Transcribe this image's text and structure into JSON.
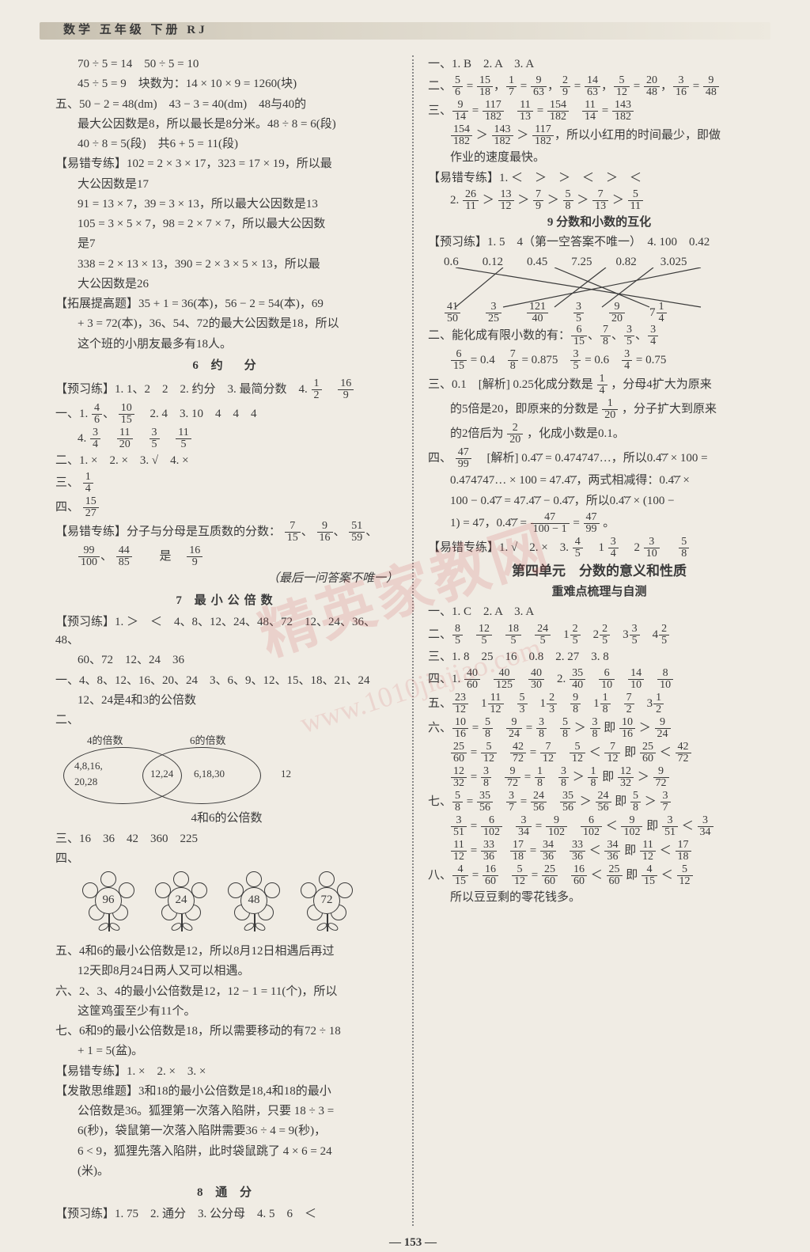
{
  "header": {
    "title": "数学 五年级 下册 RJ"
  },
  "pageNumber": "— 153 —",
  "watermark": {
    "main": "精英家教网",
    "url": "www.1010jiajiao.com"
  },
  "left": {
    "l1": "70 ÷ 5 = 14　50 ÷ 5 = 10",
    "l2": "45 ÷ 5 = 9　块数为：14 × 10 × 9 = 1260(块)",
    "l3a": "五、50 − 2 = 48(dm)　43 − 3 = 40(dm)　48与40的",
    "l3b": "最大公因数是8，所以最长是8分米。48 ÷ 8 = 6(段)",
    "l3c": "40 ÷ 8 = 5(段)　共6 + 5 = 11(段)",
    "l4a": "【易错专练】102 = 2 × 3 × 17，323 = 17 × 19，所以最",
    "l4b": "大公因数是17",
    "l5": "91 = 13 × 7，39 = 3 × 13，所以最大公因数是13",
    "l6a": "105 = 3 × 5 × 7，98 = 2 × 7 × 7，所以最大公因数",
    "l6b": "是7",
    "l7a": "338 = 2 × 13 × 13，390 = 2 × 3 × 5 × 13，所以最",
    "l7b": "大公因数是26",
    "l8a": "【拓展提高题】35 + 1 = 36(本)，56 − 2 = 54(本)，69",
    "l8b": "+ 3 = 72(本)，36、54、72的最大公因数是18，所以",
    "l8c": "这个班的小朋友最多有18人。",
    "s6": "6 约　分",
    "l9a": "【预习练】1. 1、2　2　2. 约分　3. 最简分数　4. ",
    "l9_f1n": "1",
    "l9_f1d": "2",
    "l9_f2n": "16",
    "l9_f2d": "9",
    "l10a": "一、1. ",
    "l10_f1n": "4",
    "l10_f1d": "6",
    "l10_f2n": "10",
    "l10_f2d": "15",
    "l10b": "　2. 4　3. 10　4　4　4",
    "l11a": "4. ",
    "l11_f1n": "3",
    "l11_f1d": "4",
    "l11_f2n": "11",
    "l11_f2d": "20",
    "l11_f3n": "3",
    "l11_f3d": "5",
    "l11_f4n": "11",
    "l11_f4d": "5",
    "l12": "二、1. ×　2. ×　3. √　4. ×",
    "l13a": "三、",
    "l13_f1n": "1",
    "l13_f1d": "4",
    "l14a": "四、",
    "l14_f1n": "15",
    "l14_f1d": "27",
    "l15a": "【易错专练】分子与分母是互质数的分数：",
    "l15_f1n": "7",
    "l15_f1d": "15",
    "l15_f2n": "9",
    "l15_f2d": "16",
    "l15_f3n": "51",
    "l15_f3d": "59",
    "l16_f1n": "99",
    "l16_f1d": "100",
    "l16_f2n": "44",
    "l16_f2d": "85",
    "l16b": "　　是　",
    "l16_f3n": "16",
    "l16_f3d": "9",
    "l17": "（最后一问答案不唯一）",
    "s7": "7 最小公倍数",
    "l18a": "【预习练】1. ＞　＜　4、8、12、24、48、72　12、24、36、48、",
    "l18b": "60、72　12、24　36",
    "l19a": "一、4、8、12、16、20、24　3、6、9、12、15、18、21、24",
    "l19b": "12、24是4和3的公倍数",
    "venn": {
      "leftLabel": "4的倍数",
      "rightLabel": "6的倍数",
      "leftVals": "4,8,16,\n20,28",
      "midVals": "12,24",
      "rightVals": "6,18,30",
      "rightExtra": "12",
      "bottom": "4和6的公倍数"
    },
    "l21": "三、16　36　42　360　225",
    "l22": "四、",
    "flowers": [
      "96",
      "24",
      "48",
      "72"
    ],
    "l23a": "五、4和6的最小公倍数是12，所以8月12日相遇后再过",
    "l23b": "12天即8月24日两人又可以相遇。",
    "l24a": "六、2、3、4的最小公倍数是12，12 − 1 = 11(个)，所以",
    "l24b": "这筐鸡蛋至少有11个。",
    "l25a": "七、6和9的最小公倍数是18，所以需要移动的有72 ÷ 18",
    "l25b": "+ 1 = 5(盆)。",
    "l26": "【易错专练】1. ×　2. ×　3. ×",
    "l27a": "【发散思维题】3和18的最小公倍数是18,4和18的最小",
    "l27b": "公倍数是36。狐狸第一次落入陷阱，只要 18 ÷ 3 =",
    "l27c": "6(秒)，袋鼠第一次落入陷阱需要36 ÷ 4 = 9(秒)，",
    "l27d": "6 < 9，狐狸先落入陷阱，此时袋鼠跳了 4 × 6 = 24",
    "l27e": "(米)。",
    "s8": "8 通 分",
    "l28": "【预习练】1. 75　2. 通分　3. 公分母　4. 5　6　＜"
  },
  "right": {
    "r1": "一、1. B　2. A　3. A",
    "r2a": "二、",
    "r2": [
      [
        "5",
        "6",
        "15",
        "18"
      ],
      [
        "1",
        "7",
        "9",
        "63"
      ],
      [
        "2",
        "9",
        "14",
        "63"
      ],
      [
        "5",
        "12",
        "20",
        "48"
      ],
      [
        "3",
        "16",
        "9",
        "48"
      ]
    ],
    "r3a": "三、",
    "r3": [
      [
        "9",
        "14",
        "117",
        "182"
      ],
      [
        "11",
        "13",
        "154",
        "182"
      ],
      [
        "11",
        "14",
        "143",
        "182"
      ]
    ],
    "r3b_f": [
      [
        "154",
        "182"
      ],
      [
        "143",
        "182"
      ],
      [
        "117",
        "182"
      ]
    ],
    "r3b_t": "，所以小红用的时间最少，即做",
    "r3c": "作业的速度最快。",
    "r4": "【易错专练】1. ＜　＞　＞　＜　＞　＜",
    "r5a": "2. ",
    "r5": [
      [
        "26",
        "11"
      ],
      [
        "13",
        "12"
      ],
      [
        "7",
        "9"
      ],
      [
        "5",
        "8"
      ],
      [
        "7",
        "13"
      ],
      [
        "5",
        "11"
      ]
    ],
    "s9": "9 分数和小数的互化",
    "r6": "【预习练】1. 5　4（第一空答案不唯一）　4. 100　0.42",
    "crossTop": [
      "0.6",
      "0.12",
      "0.45",
      "7.25",
      "0.82",
      "3.025"
    ],
    "crossBot": [
      [
        "41",
        "50"
      ],
      [
        "3",
        "25"
      ],
      [
        "121",
        "40"
      ],
      [
        "3",
        "5"
      ],
      [
        "9",
        "20"
      ],
      [
        "7",
        "",
        "1",
        "4"
      ]
    ],
    "r8a": "二、能化成有限小数的有：",
    "r8": [
      [
        "6",
        "15"
      ],
      [
        "7",
        "8"
      ],
      [
        "3",
        "5"
      ],
      [
        "3",
        "4"
      ]
    ],
    "r9": [
      [
        "6",
        "15",
        "0.4"
      ],
      [
        "7",
        "8",
        "0.875"
      ],
      [
        "3",
        "5",
        "0.6"
      ],
      [
        "3",
        "4",
        "0.75"
      ]
    ],
    "r10a": "三、0.1　[解析] 0.25化成分数是",
    "r10_f1": [
      "1",
      "4"
    ],
    "r10b": "，分母4扩大为原来",
    "r10c": "的5倍是20，即原来的分数是",
    "r10_f2": [
      "1",
      "20"
    ],
    "r10d": "，分子扩大到原来",
    "r10e": "的2倍后为",
    "r10_f3": [
      "2",
      "20"
    ],
    "r10f": "，化成小数是0.1。",
    "r11a": "四、",
    "r11_f1": [
      "47",
      "99"
    ],
    "r11b": "　[解析] 0.4̇7̇ = 0.474747…，所以0.4̇7̇ × 100 =",
    "r11c": "0.474747… × 100 = 47.4̇7̇，两式相减得：0.4̇7̇ ×",
    "r11d": "100 − 0.4̇7̇ = 47.4̇7̇ − 0.4̇7̇，所以0.4̇7̇ × (100 −",
    "r11e": "1) = 47，0.4̇7̇ = ",
    "r11_f2": [
      "47",
      "100 − 1"
    ],
    "r11eq": " = ",
    "r11_f3": [
      "47",
      "99"
    ],
    "r11f": "。",
    "r12a": "【易错专练】1. √　2. ×　3. ",
    "r12_f1": [
      "4",
      "5"
    ],
    "r12b": "　1",
    "r12_f2": [
      "3",
      "4"
    ],
    "r12c": "　2",
    "r12_f3": [
      "3",
      "10"
    ],
    "r12d": "　",
    "r12_f4": [
      "5",
      "8"
    ],
    "unit4": "第四单元　分数的意义和性质",
    "unit4b": "重难点梳理与自测",
    "r13": "一、1. C　2. A　3. A",
    "r14a": "二、",
    "r14": [
      [
        "8",
        "5"
      ],
      [
        "12",
        "5"
      ],
      [
        "18",
        "5"
      ],
      [
        "24",
        "5"
      ]
    ],
    "r14b": "　1",
    "r14m": [
      [
        "2",
        "5"
      ],
      [
        "2",
        "5"
      ],
      [
        "3",
        "5"
      ],
      [
        "2",
        "5"
      ]
    ],
    "r14nums": [
      "1",
      "2",
      "3",
      "4"
    ],
    "r15": "三、1. 8　25　16　0.8　2. 27　3. 8",
    "r16a": "四、1. ",
    "r16": [
      [
        "40",
        "60"
      ],
      [
        "40",
        "125"
      ],
      [
        "40",
        "30"
      ]
    ],
    "r16b": "　2. ",
    "r16_2": [
      [
        "35",
        "40"
      ],
      [
        "6",
        "10"
      ],
      [
        "14",
        "10"
      ],
      [
        "8",
        "10"
      ]
    ],
    "r17a": "五、",
    "r17": [
      [
        "23",
        "12"
      ],
      [
        "11",
        "12"
      ],
      [
        "5",
        "3"
      ],
      [
        "2",
        "3"
      ],
      [
        "9",
        "8"
      ],
      [
        "1",
        "8"
      ],
      [
        "7",
        "2"
      ],
      [
        "1",
        "2"
      ]
    ],
    "r17nums": [
      "",
      "1",
      "",
      "1",
      "",
      "1",
      "",
      "3"
    ],
    "r18a": "六、",
    "r18l1": [
      [
        "10",
        "16",
        "5",
        "8"
      ],
      [
        "9",
        "24",
        "3",
        "8"
      ],
      [
        "5",
        "8",
        "3",
        "8"
      ],
      [
        "10",
        "16",
        "9",
        "24"
      ]
    ],
    "r18l2": [
      [
        "25",
        "60",
        "5",
        "12"
      ],
      [
        "42",
        "72",
        "7",
        "12"
      ],
      [
        "5",
        "12",
        "7",
        "12"
      ],
      [
        "25",
        "60",
        "42",
        "72"
      ]
    ],
    "r18l3": [
      [
        "12",
        "32",
        "3",
        "8"
      ],
      [
        "9",
        "72",
        "1",
        "8"
      ],
      [
        "3",
        "8",
        "1",
        "8"
      ],
      [
        "12",
        "32",
        "9",
        "72"
      ]
    ],
    "r19a": "七、",
    "r19l1": [
      [
        "5",
        "8",
        "35",
        "56"
      ],
      [
        "3",
        "7",
        "24",
        "56"
      ],
      [
        "35",
        "56",
        "24",
        "56"
      ],
      [
        "5",
        "8",
        "3",
        "7"
      ]
    ],
    "r19l2": [
      [
        "3",
        "51",
        "6",
        "102"
      ],
      [
        "3",
        "34",
        "9",
        "102"
      ],
      [
        "6",
        "102",
        "9",
        "102"
      ],
      [
        "3",
        "51",
        "3",
        "34"
      ]
    ],
    "r19l3": [
      [
        "11",
        "12",
        "33",
        "36"
      ],
      [
        "17",
        "18",
        "34",
        "36"
      ],
      [
        "33",
        "36",
        "34",
        "36"
      ],
      [
        "11",
        "12",
        "17",
        "18"
      ]
    ],
    "r20a": "八、",
    "r20": [
      [
        "4",
        "15",
        "16",
        "60"
      ],
      [
        "5",
        "12",
        "25",
        "60"
      ],
      [
        "16",
        "60",
        "25",
        "60"
      ],
      [
        "4",
        "15",
        "5",
        "12"
      ]
    ],
    "r20b": "所以豆豆剩的零花钱多。"
  }
}
